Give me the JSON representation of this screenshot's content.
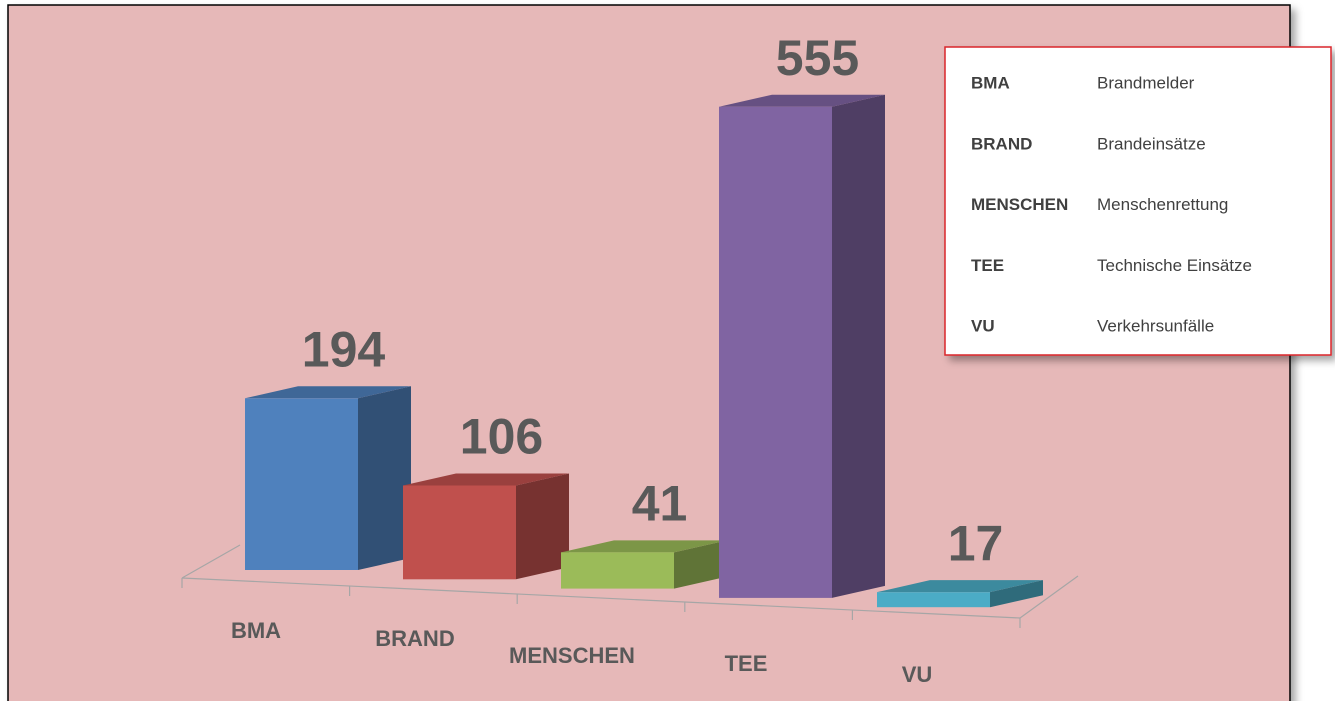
{
  "chart_data": {
    "type": "bar3d",
    "categories": [
      "BMA",
      "BRAND",
      "MENSCHEN",
      "TEE",
      "VU"
    ],
    "values": [
      194,
      106,
      41,
      555,
      17
    ],
    "colors": [
      "#4f81bd",
      "#c0504d",
      "#9bbb59",
      "#8064a2",
      "#4bacc6"
    ],
    "legend": [
      {
        "code": "BMA",
        "text": "Brandmelder"
      },
      {
        "code": "BRAND",
        "text": "Brandeinsätze"
      },
      {
        "code": "MENSCHEN",
        "text": "Menschenrettung"
      },
      {
        "code": "TEE",
        "text": "Technische Einsätze"
      },
      {
        "code": "VU",
        "text": "Verkehrsunfälle"
      }
    ]
  }
}
